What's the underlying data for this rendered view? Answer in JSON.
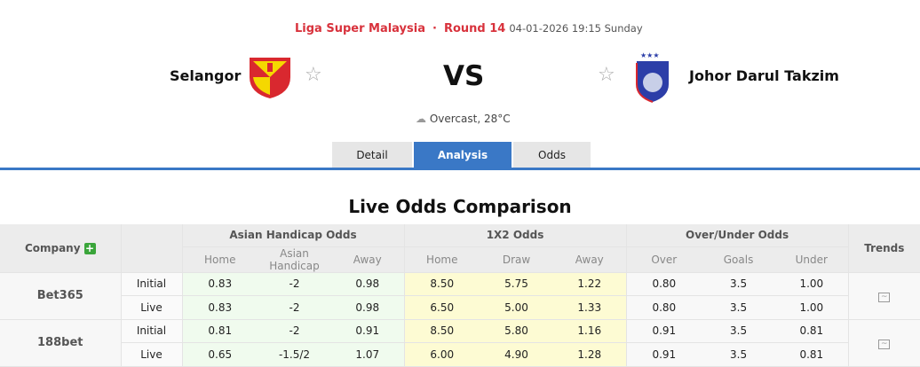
{
  "match": {
    "league": "Liga Super Malaysia",
    "round": "Round 14",
    "datetime": "04-01-2026 19:15 Sunday",
    "home": "Selangor",
    "away": "Johor Darul Takzim",
    "vs": "VS",
    "weather": "Overcast, 28°C"
  },
  "tabs": [
    {
      "label": "Detail"
    },
    {
      "label": "Analysis",
      "active": true
    },
    {
      "label": "Odds"
    }
  ],
  "section_title": "Live Odds Comparison",
  "table": {
    "headers": {
      "company": "Company",
      "ah": "Asian Handicap Odds",
      "x12": "1X2 Odds",
      "ou": "Over/Under Odds",
      "trends": "Trends"
    },
    "subheaders": [
      "Home",
      "Asian Handicap",
      "Away",
      "Home",
      "Draw",
      "Away",
      "Over",
      "Goals",
      "Under"
    ],
    "companies": [
      {
        "name": "Bet365",
        "rows": [
          {
            "type": "Initial",
            "values": [
              "0.83",
              "-2",
              "0.98",
              "8.50",
              "5.75",
              "1.22",
              "0.80",
              "3.5",
              "1.00"
            ]
          },
          {
            "type": "Live",
            "values": [
              "0.83",
              "-2",
              "0.98",
              "6.50",
              "5.00",
              "1.33",
              "0.80",
              "3.5",
              "1.00"
            ]
          }
        ]
      },
      {
        "name": "188bet",
        "rows": [
          {
            "type": "Initial",
            "values": [
              "0.81",
              "-2",
              "0.91",
              "8.50",
              "5.80",
              "1.16",
              "0.91",
              "3.5",
              "0.81"
            ]
          },
          {
            "type": "Live",
            "values": [
              "0.65",
              "-1.5/2",
              "1.07",
              "6.00",
              "4.90",
              "1.28",
              "0.91",
              "3.5",
              "0.81"
            ]
          }
        ]
      }
    ]
  },
  "colors": {
    "accent": "#3a78c6",
    "league": "#d8323c",
    "ah_bg": "#f0fbee",
    "x12_bg": "#fdfbd3"
  }
}
